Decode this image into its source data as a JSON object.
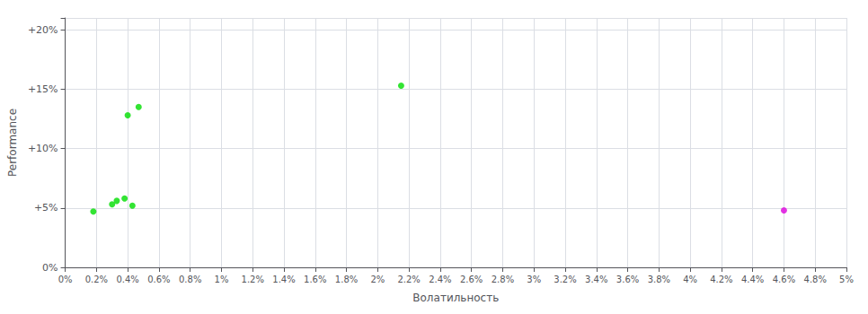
{
  "chart_data": {
    "type": "scatter",
    "xlabel": "Волатильность",
    "ylabel": "Performance",
    "xlim": [
      0.0,
      0.05
    ],
    "ylim": [
      0.0,
      0.21
    ],
    "xticks": [
      {
        "value": 0.0,
        "label": "0%"
      },
      {
        "value": 0.002,
        "label": "0.2%"
      },
      {
        "value": 0.004,
        "label": "0.4%"
      },
      {
        "value": 0.006,
        "label": "0.6%"
      },
      {
        "value": 0.008,
        "label": "0.8%"
      },
      {
        "value": 0.01,
        "label": "1%"
      },
      {
        "value": 0.012,
        "label": "1.2%"
      },
      {
        "value": 0.014,
        "label": "1.4%"
      },
      {
        "value": 0.016,
        "label": "1.6%"
      },
      {
        "value": 0.018,
        "label": "1.8%"
      },
      {
        "value": 0.02,
        "label": "2%"
      },
      {
        "value": 0.022,
        "label": "2.2%"
      },
      {
        "value": 0.024,
        "label": "2.4%"
      },
      {
        "value": 0.026,
        "label": "2.6%"
      },
      {
        "value": 0.028,
        "label": "2.8%"
      },
      {
        "value": 0.03,
        "label": "3%"
      },
      {
        "value": 0.032,
        "label": "3.2%"
      },
      {
        "value": 0.034,
        "label": "3.4%"
      },
      {
        "value": 0.036,
        "label": "3.6%"
      },
      {
        "value": 0.038,
        "label": "3.8%"
      },
      {
        "value": 0.04,
        "label": "4%"
      },
      {
        "value": 0.042,
        "label": "4.2%"
      },
      {
        "value": 0.044,
        "label": "4.4%"
      },
      {
        "value": 0.046,
        "label": "4.6%"
      },
      {
        "value": 0.048,
        "label": "4.8%"
      },
      {
        "value": 0.05,
        "label": "5%"
      }
    ],
    "yticks": [
      {
        "value": 0.0,
        "label": "0%"
      },
      {
        "value": 0.05,
        "label": "+5%"
      },
      {
        "value": 0.1,
        "label": "+10%"
      },
      {
        "value": 0.15,
        "label": "+15%"
      },
      {
        "value": 0.2,
        "label": "+20%"
      }
    ],
    "grid": true,
    "series": [
      {
        "color": "#00dd00",
        "x": [
          0.0018,
          0.003,
          0.0033,
          0.0038,
          0.0043,
          0.004,
          0.0047,
          0.0215
        ],
        "values": [
          0.047,
          0.053,
          0.056,
          0.058,
          0.052,
          0.128,
          0.135,
          0.153
        ]
      },
      {
        "color": "#dd00dd",
        "x": [
          0.046
        ],
        "values": [
          0.048
        ]
      }
    ]
  }
}
